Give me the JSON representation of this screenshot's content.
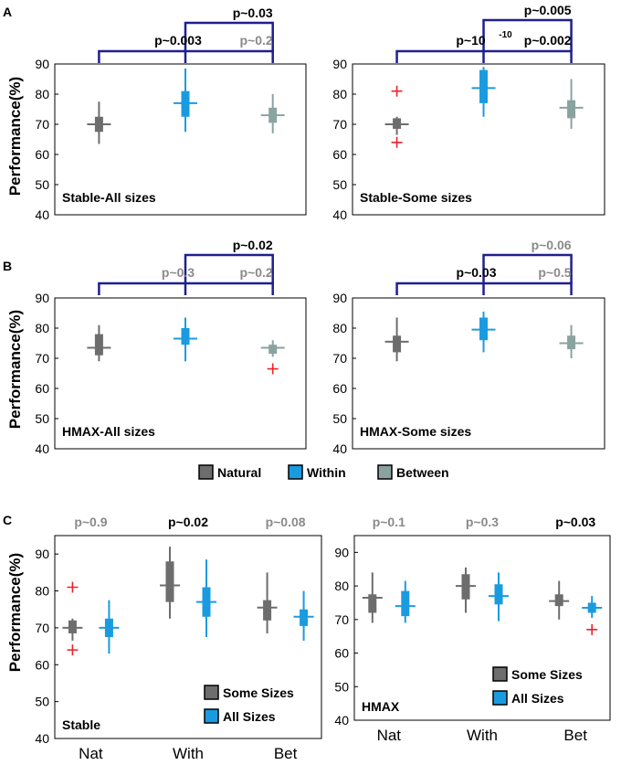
{
  "colors": {
    "natural": "#6d6d6d",
    "within": "#1a9be0",
    "between": "#8aa3a0",
    "outlier": "#e8242b",
    "bracket": "#1f1f8f",
    "sig_text": "#000000",
    "ns_text": "#8a8a8a"
  },
  "y_axis_label": "Performance(%)",
  "legend": [
    {
      "key": "natural",
      "label": "Natural"
    },
    {
      "key": "within",
      "label": "Within"
    },
    {
      "key": "between",
      "label": "Between"
    }
  ],
  "chart_data": [
    {
      "panel": "A",
      "type": "boxplot",
      "title": "Stable-All sizes",
      "ylim": [
        40,
        90
      ],
      "yticks": [
        40,
        50,
        60,
        70,
        80,
        90
      ],
      "boxes": [
        {
          "group": "natural",
          "median": 70,
          "q1": 67.5,
          "q3": 72.5,
          "min": 63.5,
          "max": 77.5,
          "outliers": []
        },
        {
          "group": "within",
          "median": 77,
          "q1": 72.5,
          "q3": 81,
          "min": 67.5,
          "max": 88.5,
          "outliers": []
        },
        {
          "group": "between",
          "median": 73,
          "q1": 70.5,
          "q3": 75.5,
          "min": 67,
          "max": 80,
          "outliers": []
        }
      ],
      "annotations": [
        {
          "text": "p~0.03",
          "sig": true
        },
        {
          "text": "p~0.003",
          "sig": true
        },
        {
          "text": "p~0.2",
          "sig": false
        }
      ]
    },
    {
      "panel": "A",
      "type": "boxplot",
      "title": "Stable-Some sizes",
      "ylim": [
        40,
        90
      ],
      "yticks": [
        40,
        50,
        60,
        70,
        80,
        90
      ],
      "boxes": [
        {
          "group": "natural",
          "median": 70,
          "q1": 68.5,
          "q3": 72,
          "min": 66.5,
          "max": 72.5,
          "outliers": [
            81,
            64
          ]
        },
        {
          "group": "within",
          "median": 82,
          "q1": 77,
          "q3": 88,
          "min": 72.5,
          "max": 89,
          "outliers": []
        },
        {
          "group": "between",
          "median": 75.5,
          "q1": 72,
          "q3": 78,
          "min": 68.5,
          "max": 85,
          "outliers": []
        }
      ],
      "annotations": [
        {
          "text": "p~0.005",
          "sig": true
        },
        {
          "text": "p~10",
          "exponent": "-10",
          "sig": true
        },
        {
          "text": "p~0.002",
          "sig": true
        }
      ]
    },
    {
      "panel": "B",
      "type": "boxplot",
      "title": "HMAX-All sizes",
      "ylim": [
        40,
        90
      ],
      "yticks": [
        40,
        50,
        60,
        70,
        80,
        90
      ],
      "boxes": [
        {
          "group": "natural",
          "median": 73.5,
          "q1": 71,
          "q3": 78,
          "min": 69,
          "max": 81,
          "outliers": []
        },
        {
          "group": "within",
          "median": 76.5,
          "q1": 74.5,
          "q3": 80,
          "min": 69,
          "max": 83.5,
          "outliers": []
        },
        {
          "group": "between",
          "median": 73.5,
          "q1": 71.5,
          "q3": 74.5,
          "min": 70.5,
          "max": 76,
          "outliers": [
            66.5
          ]
        }
      ],
      "annotations": [
        {
          "text": "p~0.02",
          "sig": true
        },
        {
          "text": "p~0.3",
          "sig": false
        },
        {
          "text": "p~0.2",
          "sig": false
        }
      ]
    },
    {
      "panel": "B",
      "type": "boxplot",
      "title": "HMAX-Some sizes",
      "ylim": [
        40,
        90
      ],
      "yticks": [
        40,
        50,
        60,
        70,
        80,
        90
      ],
      "boxes": [
        {
          "group": "natural",
          "median": 75.5,
          "q1": 72,
          "q3": 77.5,
          "min": 69,
          "max": 83.5,
          "outliers": []
        },
        {
          "group": "within",
          "median": 79.5,
          "q1": 76,
          "q3": 83.5,
          "min": 72,
          "max": 85.5,
          "outliers": []
        },
        {
          "group": "between",
          "median": 75,
          "q1": 73,
          "q3": 77.5,
          "min": 70,
          "max": 81,
          "outliers": []
        }
      ],
      "annotations": [
        {
          "text": "p~0.06",
          "sig": false
        },
        {
          "text": "p~0.03",
          "sig": true
        },
        {
          "text": "p~0.5",
          "sig": false
        }
      ]
    },
    {
      "panel": "C",
      "type": "boxplot",
      "title": "Stable",
      "ylim": [
        40,
        95
      ],
      "yticks": [
        40,
        50,
        60,
        70,
        80,
        90
      ],
      "categories": [
        "Nat",
        "With",
        "Bet"
      ],
      "series_legend": [
        {
          "key": "some",
          "label": "Some Sizes"
        },
        {
          "key": "all",
          "label": "All Sizes"
        }
      ],
      "groups": [
        {
          "category": "Nat",
          "p": "p~0.9",
          "sig": false,
          "some": {
            "median": 70,
            "q1": 68.5,
            "q3": 72,
            "min": 66.5,
            "max": 72.5,
            "outliers": [
              81,
              64
            ]
          },
          "all": {
            "median": 70,
            "q1": 67.5,
            "q3": 72.5,
            "min": 63,
            "max": 77.5,
            "outliers": []
          }
        },
        {
          "category": "With",
          "p": "p~0.02",
          "sig": true,
          "some": {
            "median": 81.5,
            "q1": 77,
            "q3": 88,
            "min": 72.5,
            "max": 92,
            "outliers": []
          },
          "all": {
            "median": 77,
            "q1": 73,
            "q3": 81,
            "min": 67.5,
            "max": 88.5,
            "outliers": []
          }
        },
        {
          "category": "Bet",
          "p": "p~0.08",
          "sig": false,
          "some": {
            "median": 75.5,
            "q1": 72,
            "q3": 77.5,
            "min": 68.5,
            "max": 85,
            "outliers": []
          },
          "all": {
            "median": 73,
            "q1": 70.5,
            "q3": 75,
            "min": 66.5,
            "max": 80,
            "outliers": []
          }
        }
      ]
    },
    {
      "panel": "C",
      "type": "boxplot",
      "title": "HMAX",
      "ylim": [
        40,
        95
      ],
      "yticks": [
        40,
        50,
        60,
        70,
        80,
        90
      ],
      "categories": [
        "Nat",
        "With",
        "Bet"
      ],
      "series_legend": [
        {
          "key": "some",
          "label": "Some Sizes"
        },
        {
          "key": "all",
          "label": "All Sizes"
        }
      ],
      "groups": [
        {
          "category": "Nat",
          "p": "p~0.1",
          "sig": false,
          "some": {
            "median": 76.5,
            "q1": 72,
            "q3": 77.5,
            "min": 69,
            "max": 84,
            "outliers": []
          },
          "all": {
            "median": 74,
            "q1": 71,
            "q3": 78.5,
            "min": 69,
            "max": 81.5,
            "outliers": []
          }
        },
        {
          "category": "With",
          "p": "p~0.3",
          "sig": false,
          "some": {
            "median": 80,
            "q1": 76,
            "q3": 83.5,
            "min": 72,
            "max": 85.5,
            "outliers": []
          },
          "all": {
            "median": 77,
            "q1": 74.5,
            "q3": 80.5,
            "min": 69.5,
            "max": 84,
            "outliers": []
          }
        },
        {
          "category": "Bet",
          "p": "p~0.03",
          "sig": true,
          "some": {
            "median": 75.5,
            "q1": 74,
            "q3": 77.5,
            "min": 70,
            "max": 81.5,
            "outliers": []
          },
          "all": {
            "median": 73.5,
            "q1": 72,
            "q3": 75,
            "min": 70.5,
            "max": 77,
            "outliers": [
              67
            ]
          }
        }
      ]
    }
  ],
  "panel_labels": [
    "A",
    "B",
    "C"
  ]
}
